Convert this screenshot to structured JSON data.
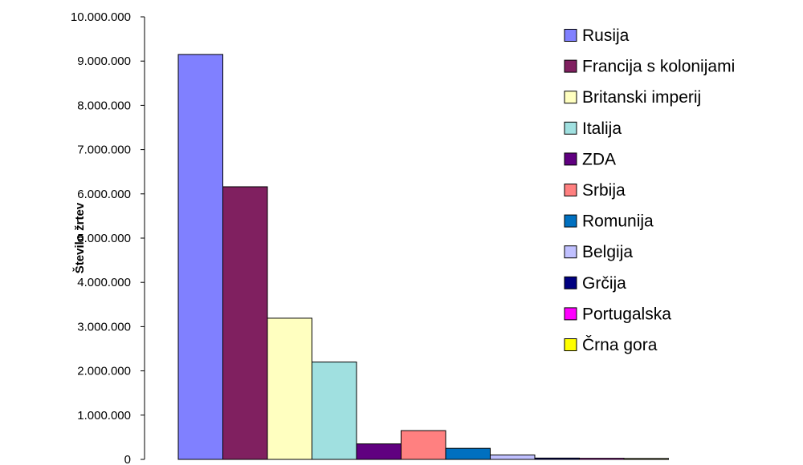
{
  "chart_data": {
    "type": "bar",
    "ylabel": "Število žrtev",
    "xlabel": "",
    "title": "",
    "ylim": [
      0,
      10000000
    ],
    "ytick_values": [
      0,
      1000000,
      2000000,
      3000000,
      4000000,
      5000000,
      6000000,
      7000000,
      8000000,
      9000000,
      10000000
    ],
    "ytick_labels": [
      "0",
      "1.000.000",
      "2.000.000",
      "3.000.000",
      "4.000.000",
      "5.000.000",
      "6.000.000",
      "7.000.000",
      "8.000.000",
      "9.000.000",
      "10.000.000"
    ],
    "grid": false,
    "legend_position": "right",
    "series": [
      {
        "name": "Rusija",
        "value": 9150000,
        "color": "#8080ff"
      },
      {
        "name": "Francija s kolonijami",
        "value": 6160000,
        "color": "#802060"
      },
      {
        "name": "Britanski imperij",
        "value": 3190000,
        "color": "#ffffc0"
      },
      {
        "name": "Italija",
        "value": 2200000,
        "color": "#a0e0e0"
      },
      {
        "name": "ZDA",
        "value": 350000,
        "color": "#600080"
      },
      {
        "name": "Srbija",
        "value": 650000,
        "color": "#ff8080"
      },
      {
        "name": "Romunija",
        "value": 250000,
        "color": "#0070c0"
      },
      {
        "name": "Belgija",
        "value": 100000,
        "color": "#c0c0ff"
      },
      {
        "name": "Grčija",
        "value": 30000,
        "color": "#000080"
      },
      {
        "name": "Portugalska",
        "value": 25000,
        "color": "#ff00ff"
      },
      {
        "name": "Črna gora",
        "value": 20000,
        "color": "#ffff00"
      }
    ]
  }
}
